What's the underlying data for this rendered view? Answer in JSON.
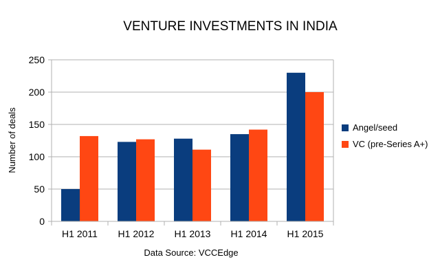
{
  "chart_data": {
    "type": "bar",
    "title": "VENTURE INVESTMENTS IN INDIA",
    "xlabel": "",
    "ylabel": "Number of deals",
    "source": "Data Source: VCCEdge",
    "categories": [
      "H1 2011",
      "H1 2012",
      "H1 2013",
      "H1 2014",
      "H1 2015"
    ],
    "series": [
      {
        "name": "Angel/seed",
        "color": "#0a3d7e",
        "values": [
          50,
          123,
          128,
          135,
          230
        ]
      },
      {
        "name": "VC (pre-Series A+)",
        "color": "#ff4713",
        "values": [
          132,
          127,
          111,
          142,
          200
        ]
      }
    ],
    "ylim": [
      0,
      250
    ],
    "yticks": [
      0,
      50,
      100,
      150,
      200,
      250
    ],
    "grid": true,
    "legend": "right"
  }
}
